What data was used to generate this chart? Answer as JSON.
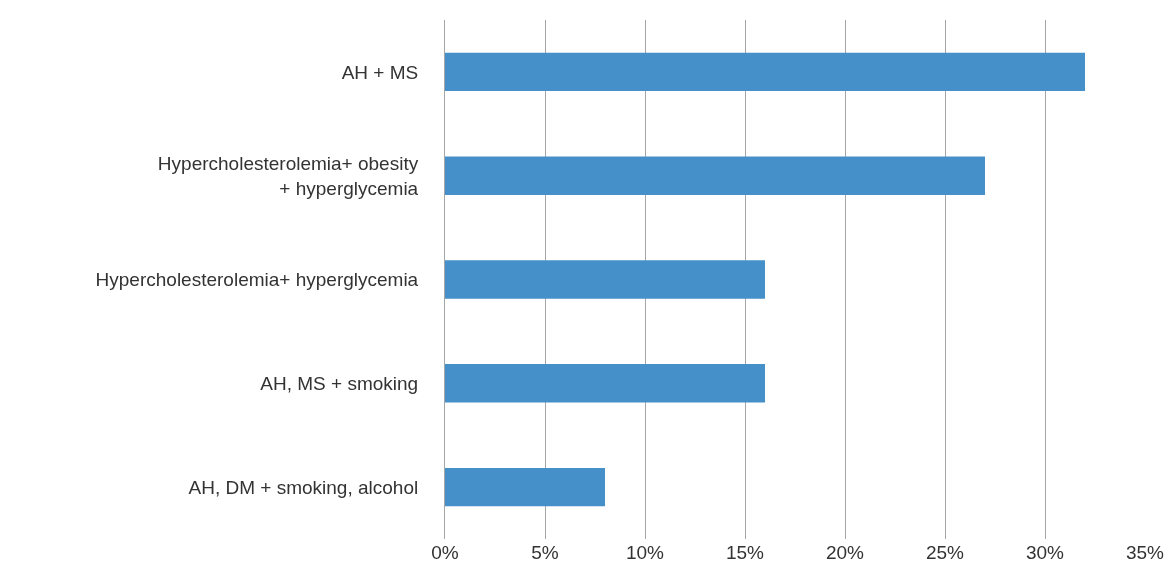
{
  "chart_data": {
    "type": "bar",
    "orientation": "horizontal",
    "categories": [
      "AH + MS",
      "Hypercholesterolemia+ obesity + hyperglycemia",
      "Hypercholesterolemia+ hyperglycemia",
      "AH, MS + smoking",
      "AH, DM + smoking, alcohol"
    ],
    "values": [
      32,
      27,
      16,
      16,
      8
    ],
    "color": "#4590c9",
    "xlim": [
      0,
      35
    ],
    "xticks": [
      {
        "value": 0,
        "label": "0%"
      },
      {
        "value": 5,
        "label": "5%"
      },
      {
        "value": 10,
        "label": "10%"
      },
      {
        "value": 15,
        "label": "15%"
      },
      {
        "value": 20,
        "label": "20%"
      },
      {
        "value": 25,
        "label": "25%"
      },
      {
        "value": 30,
        "label": "30%"
      },
      {
        "value": 35,
        "label": "35%"
      }
    ],
    "grid": "x"
  }
}
